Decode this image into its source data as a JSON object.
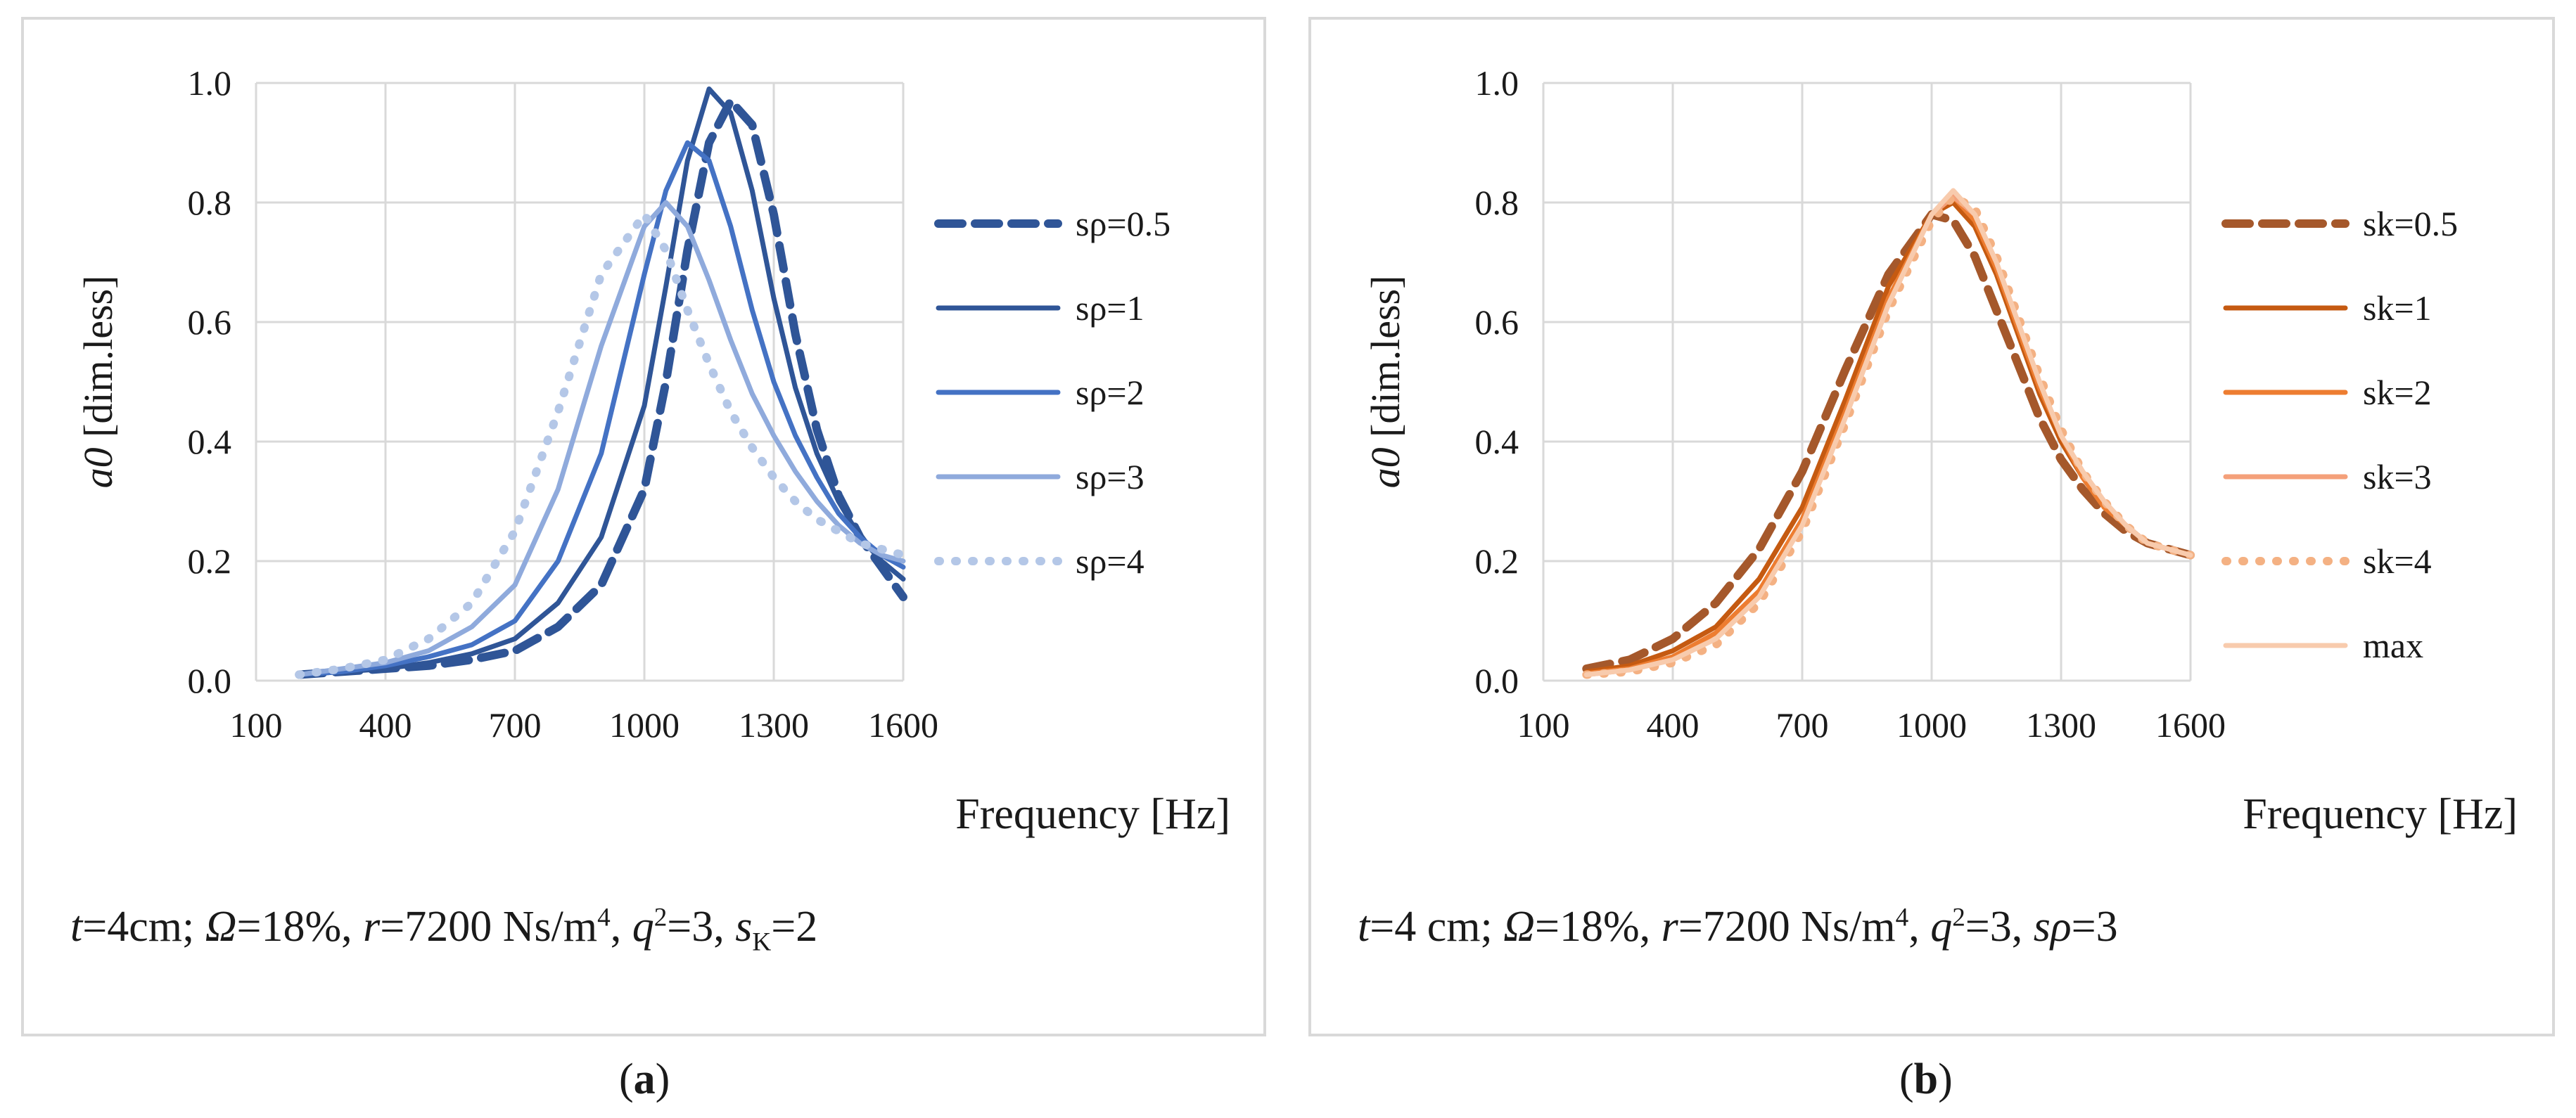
{
  "chart_data": [
    {
      "type": "line",
      "panel": "a",
      "title": "",
      "xlabel": "Frequency [Hz]",
      "ylabel": "a0 [dim.less]",
      "xlim": [
        100,
        1600
      ],
      "ylim": [
        0,
        1.0
      ],
      "x_ticks": [
        "100",
        "400",
        "700",
        "1000",
        "1300",
        "1600"
      ],
      "y_ticks": [
        "0.0",
        "0.2",
        "0.4",
        "0.6",
        "0.8",
        "1.0"
      ],
      "grid": true,
      "legend_position": "right",
      "x": [
        200,
        300,
        400,
        500,
        600,
        700,
        800,
        900,
        1000,
        1050,
        1100,
        1150,
        1200,
        1250,
        1300,
        1350,
        1400,
        1450,
        1500,
        1550,
        1600
      ],
      "series": [
        {
          "name": "sρ=0.5",
          "color": "#2f5597",
          "dash": "dash",
          "values": [
            0.01,
            0.015,
            0.02,
            0.025,
            0.035,
            0.05,
            0.09,
            0.16,
            0.32,
            0.5,
            0.72,
            0.9,
            0.97,
            0.93,
            0.78,
            0.58,
            0.42,
            0.31,
            0.24,
            0.19,
            0.14
          ]
        },
        {
          "name": "sρ=1",
          "color": "#2f5597",
          "dash": "solid",
          "values": [
            0.01,
            0.015,
            0.02,
            0.03,
            0.045,
            0.07,
            0.13,
            0.24,
            0.46,
            0.66,
            0.87,
            0.99,
            0.95,
            0.82,
            0.64,
            0.49,
            0.38,
            0.3,
            0.24,
            0.2,
            0.17
          ]
        },
        {
          "name": "sρ=2",
          "color": "#4472c4",
          "dash": "solid",
          "values": [
            0.01,
            0.015,
            0.025,
            0.04,
            0.06,
            0.1,
            0.2,
            0.38,
            0.68,
            0.82,
            0.9,
            0.87,
            0.76,
            0.62,
            0.5,
            0.41,
            0.34,
            0.28,
            0.24,
            0.21,
            0.19
          ]
        },
        {
          "name": "sρ=3",
          "color": "#8faadc",
          "dash": "solid",
          "values": [
            0.01,
            0.02,
            0.03,
            0.05,
            0.09,
            0.16,
            0.32,
            0.56,
            0.76,
            0.8,
            0.76,
            0.67,
            0.57,
            0.48,
            0.41,
            0.35,
            0.3,
            0.26,
            0.23,
            0.21,
            0.2
          ]
        },
        {
          "name": "sρ=4",
          "color": "#b4c7e7",
          "dash": "dot",
          "values": [
            0.01,
            0.02,
            0.035,
            0.07,
            0.13,
            0.25,
            0.45,
            0.68,
            0.78,
            0.72,
            0.62,
            0.53,
            0.45,
            0.39,
            0.34,
            0.3,
            0.27,
            0.25,
            0.23,
            0.22,
            0.21
          ]
        }
      ]
    },
    {
      "type": "line",
      "panel": "b",
      "title": "",
      "xlabel": "Frequency [Hz]",
      "ylabel": "a0 [dim.less]",
      "xlim": [
        100,
        1600
      ],
      "ylim": [
        0,
        1.0
      ],
      "x_ticks": [
        "100",
        "400",
        "700",
        "1000",
        "1300",
        "1600"
      ],
      "y_ticks": [
        "0.0",
        "0.2",
        "0.4",
        "0.6",
        "0.8",
        "1.0"
      ],
      "grid": true,
      "legend_position": "right",
      "x": [
        200,
        300,
        400,
        500,
        600,
        700,
        800,
        900,
        1000,
        1050,
        1100,
        1150,
        1200,
        1250,
        1300,
        1350,
        1400,
        1450,
        1500,
        1550,
        1600
      ],
      "series": [
        {
          "name": "sk=0.5",
          "color": "#a5582b",
          "dash": "dash",
          "values": [
            0.02,
            0.035,
            0.07,
            0.13,
            0.22,
            0.35,
            0.52,
            0.68,
            0.78,
            0.77,
            0.71,
            0.62,
            0.53,
            0.44,
            0.37,
            0.32,
            0.28,
            0.25,
            0.23,
            0.22,
            0.21
          ]
        },
        {
          "name": "sk=1",
          "color": "#c55a11",
          "dash": "solid",
          "values": [
            0.015,
            0.025,
            0.05,
            0.09,
            0.17,
            0.29,
            0.47,
            0.66,
            0.78,
            0.8,
            0.76,
            0.68,
            0.58,
            0.48,
            0.4,
            0.34,
            0.29,
            0.26,
            0.23,
            0.22,
            0.21
          ]
        },
        {
          "name": "sk=2",
          "color": "#ed7d31",
          "dash": "solid",
          "values": [
            0.012,
            0.02,
            0.04,
            0.08,
            0.15,
            0.27,
            0.45,
            0.64,
            0.78,
            0.81,
            0.77,
            0.69,
            0.59,
            0.49,
            0.41,
            0.34,
            0.29,
            0.26,
            0.23,
            0.22,
            0.21
          ]
        },
        {
          "name": "sk=3",
          "color": "#f4a07a",
          "dash": "solid",
          "values": [
            0.01,
            0.018,
            0.035,
            0.07,
            0.14,
            0.26,
            0.44,
            0.63,
            0.78,
            0.81,
            0.78,
            0.7,
            0.6,
            0.5,
            0.41,
            0.35,
            0.3,
            0.26,
            0.23,
            0.22,
            0.21
          ]
        },
        {
          "name": "sk=4",
          "color": "#f4b183",
          "dash": "dot",
          "values": [
            0.01,
            0.015,
            0.03,
            0.06,
            0.13,
            0.25,
            0.43,
            0.62,
            0.77,
            0.81,
            0.79,
            0.71,
            0.61,
            0.51,
            0.42,
            0.35,
            0.3,
            0.26,
            0.23,
            0.22,
            0.21
          ]
        },
        {
          "name": "max",
          "color": "#f8cbad",
          "dash": "solid",
          "values": [
            0.01,
            0.018,
            0.035,
            0.07,
            0.14,
            0.26,
            0.44,
            0.63,
            0.78,
            0.82,
            0.78,
            0.7,
            0.6,
            0.5,
            0.41,
            0.35,
            0.3,
            0.26,
            0.23,
            0.22,
            0.21
          ]
        }
      ]
    }
  ],
  "captions": {
    "a": {
      "t": "t",
      "t_val": "=4cm; ",
      "omega": "Ω",
      "omega_val": "=18%, ",
      "r": "r",
      "r_val": "=7200 Ns/m",
      "r_exp": "4",
      "sep1": ", ",
      "q": "q",
      "q_exp": "2",
      "q_val": "=3, ",
      "s": "s",
      "s_sub": "K",
      "s_val": "=2"
    },
    "b": {
      "t": "t",
      "t_val": "=4 cm; ",
      "omega": "Ω",
      "omega_val": "=18%, ",
      "r": "r",
      "r_val": "=7200 Ns/m",
      "r_exp": "4",
      "sep1": ", ",
      "q": "q",
      "q_exp": "2",
      "q_val": "=3, ",
      "s": "sρ",
      "s_val": "=3"
    }
  },
  "panel_labels": {
    "a": {
      "open": "(",
      "letter": "a",
      "close": ")"
    },
    "b": {
      "open": "(",
      "letter": "b",
      "close": ")"
    }
  }
}
